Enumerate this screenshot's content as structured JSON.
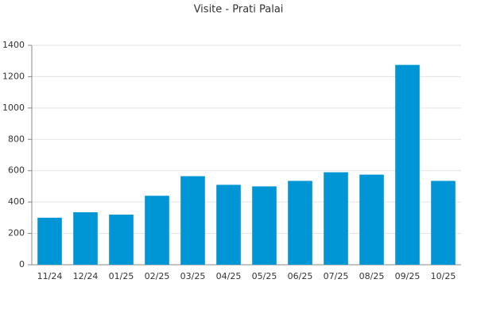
{
  "chart_data": {
    "type": "bar",
    "title": "Visite - Prati Palai",
    "categories": [
      "11/24",
      "12/24",
      "01/25",
      "02/25",
      "03/25",
      "04/25",
      "05/25",
      "06/25",
      "07/25",
      "08/25",
      "09/25",
      "10/25"
    ],
    "values": [
      300,
      335,
      320,
      440,
      565,
      510,
      500,
      535,
      590,
      575,
      1275,
      535
    ],
    "color": "#0095d5",
    "ylim": [
      0,
      1400
    ],
    "yticks": [
      0,
      200,
      400,
      600,
      800,
      1000,
      1200,
      1400
    ],
    "grid": true
  }
}
